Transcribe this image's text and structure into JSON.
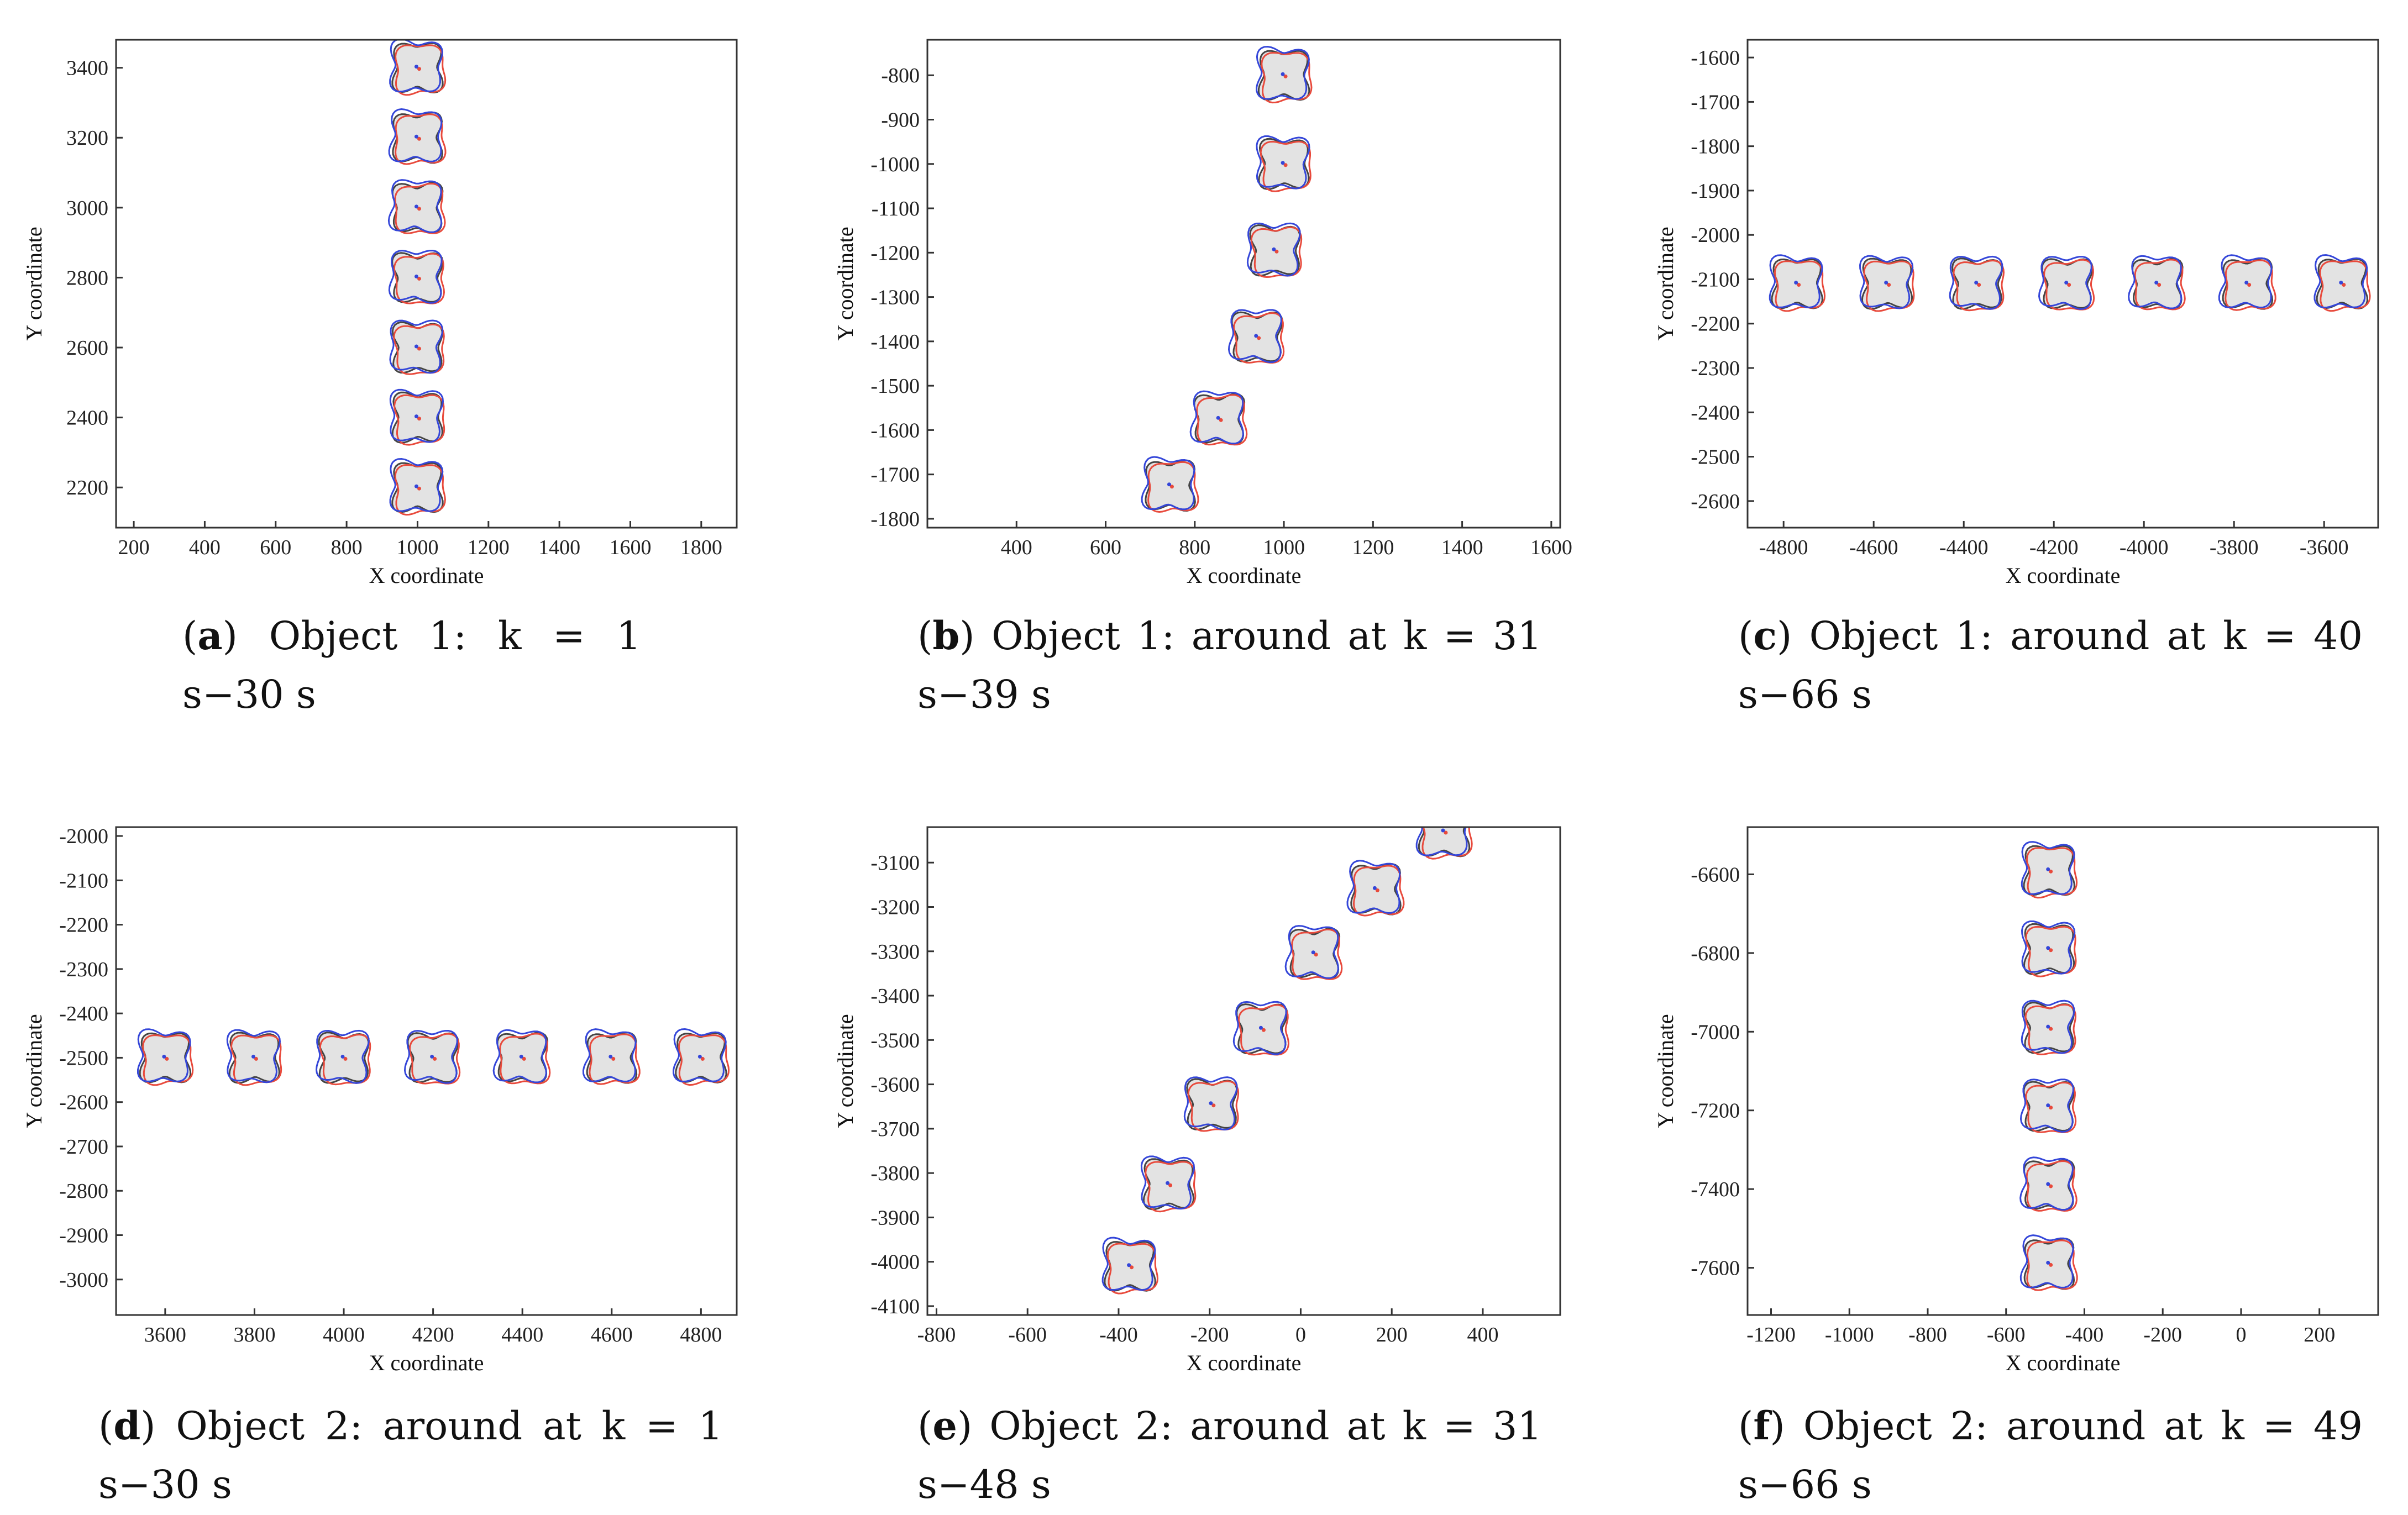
{
  "colors": {
    "truth": "#444444",
    "estimate_red": "#e84a3c",
    "estimate_blue": "#3446d9",
    "fill": "#e3e3e3"
  },
  "chart_data": [
    {
      "id": "a",
      "type": "scatter",
      "caption": {
        "letter": "a",
        "text": "Object 1: k = 1 s−30 s"
      },
      "xlabel": "X coordinate",
      "ylabel": "Y coordinate",
      "xlim": [
        150,
        1900
      ],
      "ylim": [
        2085,
        3480
      ],
      "xticks": [
        200,
        400,
        600,
        800,
        1000,
        1200,
        1400,
        1600,
        1800
      ],
      "yticks": [
        2200,
        2400,
        2600,
        2800,
        3000,
        3200,
        3400
      ],
      "x": [
        1000,
        1000,
        1000,
        1000,
        1000,
        1000,
        1000
      ],
      "y": [
        2200,
        2400,
        2600,
        2800,
        3000,
        3200,
        3400
      ]
    },
    {
      "id": "b",
      "type": "scatter",
      "caption": {
        "letter": "b",
        "text": "Object 1: around at k = 31 s−39 s"
      },
      "xlabel": "X coordinate",
      "ylabel": "Y coordinate",
      "xlim": [
        200,
        1620
      ],
      "ylim": [
        -1820,
        -720
      ],
      "xticks": [
        400,
        600,
        800,
        1000,
        1200,
        1400,
        1600
      ],
      "yticks": [
        -800,
        -900,
        -1000,
        -1100,
        -1200,
        -1300,
        -1400,
        -1500,
        -1600,
        -1700,
        -1800
      ],
      "x": [
        1000,
        1000,
        980,
        940,
        855,
        745
      ],
      "y": [
        -800,
        -1000,
        -1195,
        -1390,
        -1575,
        -1725
      ]
    },
    {
      "id": "c",
      "type": "scatter",
      "caption": {
        "letter": "c",
        "text": "Object 1: around at k = 40 s−66 s"
      },
      "xlabel": "X coordinate",
      "ylabel": "Y coordinate",
      "xlim": [
        -4880,
        -3480
      ],
      "ylim": [
        -2660,
        -1560
      ],
      "xticks": [
        -4800,
        -4600,
        -4400,
        -4200,
        -4000,
        -3800,
        -3600
      ],
      "yticks": [
        -1600,
        -1700,
        -1800,
        -1900,
        -2000,
        -2100,
        -2200,
        -2300,
        -2400,
        -2500,
        -2600
      ],
      "x": [
        -4770,
        -4570,
        -4370,
        -4170,
        -3970,
        -3770,
        -3560
      ],
      "y": [
        -2110,
        -2110,
        -2110,
        -2110,
        -2110,
        -2110,
        -2110
      ]
    },
    {
      "id": "d",
      "type": "scatter",
      "caption": {
        "letter": "d",
        "text": "Object 2: around at k = 1 s−30 s"
      },
      "xlabel": "X coordinate",
      "ylabel": "Y coordinate",
      "xlim": [
        3490,
        4880
      ],
      "ylim": [
        -3080,
        -1980
      ],
      "xticks": [
        3600,
        3800,
        4000,
        4200,
        4400,
        4600,
        4800
      ],
      "yticks": [
        -2000,
        -2100,
        -2200,
        -2300,
        -2400,
        -2500,
        -2600,
        -2700,
        -2800,
        -2900,
        -3000
      ],
      "x": [
        3600,
        3800,
        4000,
        4200,
        4400,
        4600,
        4800
      ],
      "y": [
        -2500,
        -2500,
        -2500,
        -2500,
        -2500,
        -2500,
        -2500
      ]
    },
    {
      "id": "e",
      "type": "scatter",
      "caption": {
        "letter": "e",
        "text": "Object 2: around at k = 31 s−48 s"
      },
      "xlabel": "X coordinate",
      "ylabel": "Y coordinate",
      "xlim": [
        -820,
        570
      ],
      "ylim": [
        -4120,
        -3020
      ],
      "xticks": [
        -800,
        -600,
        -400,
        -200,
        0,
        200,
        400
      ],
      "yticks": [
        -3100,
        -3200,
        -3300,
        -3400,
        -3500,
        -3600,
        -3700,
        -3800,
        -3900,
        -4000,
        -4100
      ],
      "x": [
        -375,
        -290,
        -195,
        -85,
        30,
        165,
        315
      ],
      "y": [
        -4010,
        -3825,
        -3645,
        -3475,
        -3305,
        -3160,
        -3030
      ]
    },
    {
      "id": "f",
      "type": "scatter",
      "caption": {
        "letter": "f",
        "text": "Object 2: around at k = 49 s−66 s"
      },
      "xlabel": "X coordinate",
      "ylabel": "Y coordinate",
      "xlim": [
        -1260,
        350
      ],
      "ylim": [
        -7720,
        -6480
      ],
      "xticks": [
        -1200,
        -1000,
        -800,
        -600,
        -400,
        -200,
        0,
        200
      ],
      "yticks": [
        -6600,
        -6800,
        -7000,
        -7200,
        -7400,
        -7600
      ],
      "x": [
        -490,
        -490,
        -490,
        -490,
        -490,
        -490
      ],
      "y": [
        -6590,
        -6790,
        -6990,
        -7190,
        -7390,
        -7590
      ]
    }
  ]
}
